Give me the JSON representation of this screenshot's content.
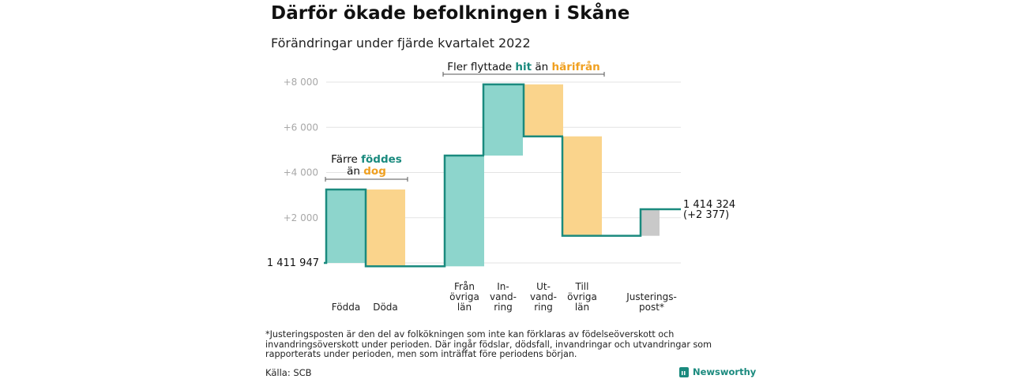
{
  "title": "Därför ökade befolkningen i Skåne",
  "subtitle": "Förändringar under fjärde kvartalet 2022",
  "footnote": "*Justeringsposten är den del av folkökningen som inte kan förklaras av födelseöverskott och invandringsöverskott under perioden. Där ingår födslar, dödsfall, invandringar och utvandringar som rapporterats under perioden, men som inträffat före periodens början.",
  "source": "Källa: SCB",
  "brand": "Newsworthy",
  "colors": {
    "increase": "#8dd5cc",
    "decrease": "#fad48c",
    "adjustment": "#c9c9c9",
    "line": "#1a8a7e",
    "teal_text": "#1a8a7e",
    "orange_text": "#f0a020",
    "grid": "#e3e3e3",
    "tick": "#a8a8a8"
  },
  "chart_data": {
    "type": "waterfall",
    "title": "Därför ökade befolkningen i Skåne",
    "subtitle": "Förändringar under fjärde kvartalet 2022",
    "start_value": 1411947,
    "start_label": "1 411 947",
    "end_value": 1414324,
    "end_label": "1 414 324",
    "end_change_label": "(+2 377)",
    "y_ticks": [
      2000,
      4000,
      6000,
      8000
    ],
    "y_tick_labels": [
      "+2 000",
      "+4 000",
      "+6 000",
      "+8 000"
    ],
    "ylim": [
      0,
      8500
    ],
    "steps": [
      {
        "label": "Födda",
        "kind": "increase",
        "from": 0,
        "to": 3250
      },
      {
        "label": "Döda",
        "kind": "decrease",
        "from": 3250,
        "to": -150
      },
      {
        "label": "Från övriga län",
        "kind": "increase",
        "from": -150,
        "to": 4750
      },
      {
        "label": "In-vandring",
        "kind": "increase",
        "from": 4750,
        "to": 7900
      },
      {
        "label": "Ut-vandring",
        "kind": "decrease",
        "from": 7900,
        "to": 5600
      },
      {
        "label": "Till övriga län",
        "kind": "decrease",
        "from": 5600,
        "to": 1200
      },
      {
        "label": "Justerings-post*",
        "kind": "adjustment",
        "from": 1200,
        "to": 2377
      }
    ],
    "x_labels": [
      [
        "Födda"
      ],
      [
        "Döda"
      ],
      [
        "Från",
        "övriga",
        "län"
      ],
      [
        "In-",
        "vand-",
        "ring"
      ],
      [
        "Ut-",
        "vand-",
        "ring"
      ],
      [
        "Till",
        "övriga",
        "län"
      ],
      [
        "Justerings-",
        "post*"
      ]
    ],
    "annotations": [
      {
        "prefix": "Färre ",
        "teal": "föddes",
        "middle": "än ",
        "orange": "dog",
        "span": [
          0,
          1
        ]
      },
      {
        "prefix": "Fler flyttade ",
        "teal": "hit",
        "middle": " än ",
        "orange": "härifrån",
        "span": [
          2,
          5
        ]
      }
    ]
  }
}
